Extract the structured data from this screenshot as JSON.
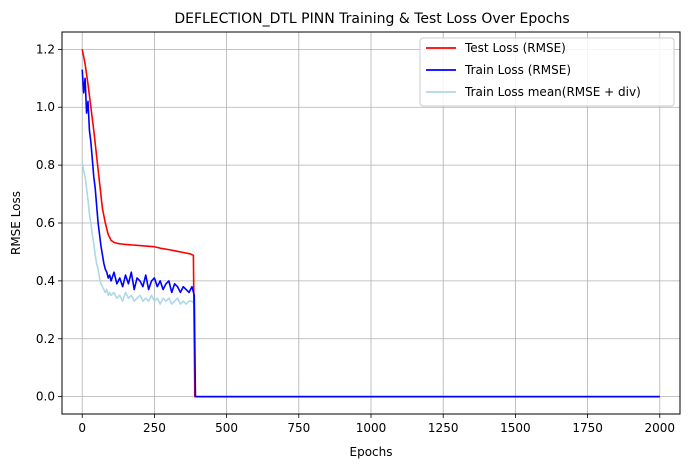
{
  "chart_data": {
    "type": "line",
    "title": "DEFLECTION_DTL PINN Training & Test Loss Over Epochs",
    "xlabel": "Epochs",
    "ylabel": "RMSE Loss",
    "xlim": [
      -70,
      2070
    ],
    "ylim": [
      -0.06,
      1.26
    ],
    "xticks": [
      0,
      250,
      500,
      750,
      1000,
      1250,
      1500,
      1750,
      2000
    ],
    "yticks": [
      0.0,
      0.2,
      0.4,
      0.6,
      0.8,
      1.0,
      1.2
    ],
    "grid": true,
    "legend_position": "top-right",
    "series": [
      {
        "name": "Test Loss (RMSE)",
        "color": "#ff0000",
        "x": [
          0,
          10,
          20,
          30,
          40,
          50,
          60,
          70,
          80,
          90,
          100,
          110,
          120,
          130,
          140,
          150,
          175,
          200,
          225,
          250,
          275,
          300,
          325,
          350,
          375,
          385,
          390,
          400,
          500,
          1000,
          1500,
          2000
        ],
        "y": [
          1.2,
          1.15,
          1.08,
          1.0,
          0.92,
          0.83,
          0.74,
          0.65,
          0.6,
          0.56,
          0.54,
          0.533,
          0.53,
          0.528,
          0.527,
          0.526,
          0.524,
          0.522,
          0.52,
          0.518,
          0.512,
          0.508,
          0.503,
          0.498,
          0.493,
          0.488,
          0.0,
          0.0,
          0.0,
          0.0,
          0.0,
          0.0
        ]
      },
      {
        "name": "Train Loss (RMSE)",
        "color": "#0000ff",
        "x": [
          0,
          5,
          10,
          15,
          20,
          25,
          30,
          35,
          40,
          45,
          50,
          55,
          60,
          65,
          70,
          75,
          80,
          85,
          90,
          95,
          100,
          110,
          120,
          130,
          140,
          150,
          160,
          170,
          180,
          190,
          200,
          210,
          220,
          230,
          240,
          250,
          260,
          270,
          280,
          290,
          300,
          310,
          320,
          330,
          340,
          350,
          360,
          370,
          380,
          388,
          392,
          400,
          500,
          1000,
          1500,
          2000
        ],
        "y": [
          1.13,
          1.05,
          1.1,
          0.98,
          1.02,
          0.92,
          0.88,
          0.82,
          0.76,
          0.72,
          0.66,
          0.6,
          0.56,
          0.52,
          0.49,
          0.46,
          0.44,
          0.43,
          0.41,
          0.42,
          0.4,
          0.43,
          0.39,
          0.41,
          0.38,
          0.42,
          0.39,
          0.43,
          0.37,
          0.41,
          0.4,
          0.38,
          0.42,
          0.37,
          0.4,
          0.41,
          0.38,
          0.4,
          0.37,
          0.39,
          0.4,
          0.36,
          0.39,
          0.38,
          0.36,
          0.38,
          0.37,
          0.36,
          0.38,
          0.35,
          0.0,
          0.0,
          0.0,
          0.0,
          0.0,
          0.0
        ]
      },
      {
        "name": "Train Loss mean(RMSE + div)",
        "color": "#add8e6",
        "x": [
          0,
          5,
          10,
          15,
          20,
          25,
          30,
          35,
          40,
          45,
          50,
          55,
          60,
          65,
          70,
          75,
          80,
          85,
          90,
          95,
          100,
          110,
          120,
          130,
          140,
          150,
          160,
          170,
          180,
          190,
          200,
          210,
          220,
          230,
          240,
          250,
          260,
          270,
          280,
          290,
          300,
          310,
          320,
          330,
          340,
          350,
          360,
          370,
          380,
          388,
          392,
          400,
          500,
          1000,
          1500,
          2000
        ],
        "y": [
          0.81,
          0.78,
          0.76,
          0.72,
          0.68,
          0.63,
          0.6,
          0.56,
          0.53,
          0.49,
          0.46,
          0.44,
          0.41,
          0.39,
          0.38,
          0.37,
          0.36,
          0.37,
          0.35,
          0.36,
          0.35,
          0.36,
          0.34,
          0.35,
          0.33,
          0.36,
          0.34,
          0.35,
          0.33,
          0.34,
          0.35,
          0.33,
          0.34,
          0.33,
          0.35,
          0.33,
          0.34,
          0.32,
          0.34,
          0.33,
          0.34,
          0.32,
          0.33,
          0.34,
          0.32,
          0.33,
          0.32,
          0.33,
          0.33,
          0.32,
          0.0,
          0.0,
          0.0,
          0.0,
          0.0,
          0.0
        ]
      }
    ]
  }
}
